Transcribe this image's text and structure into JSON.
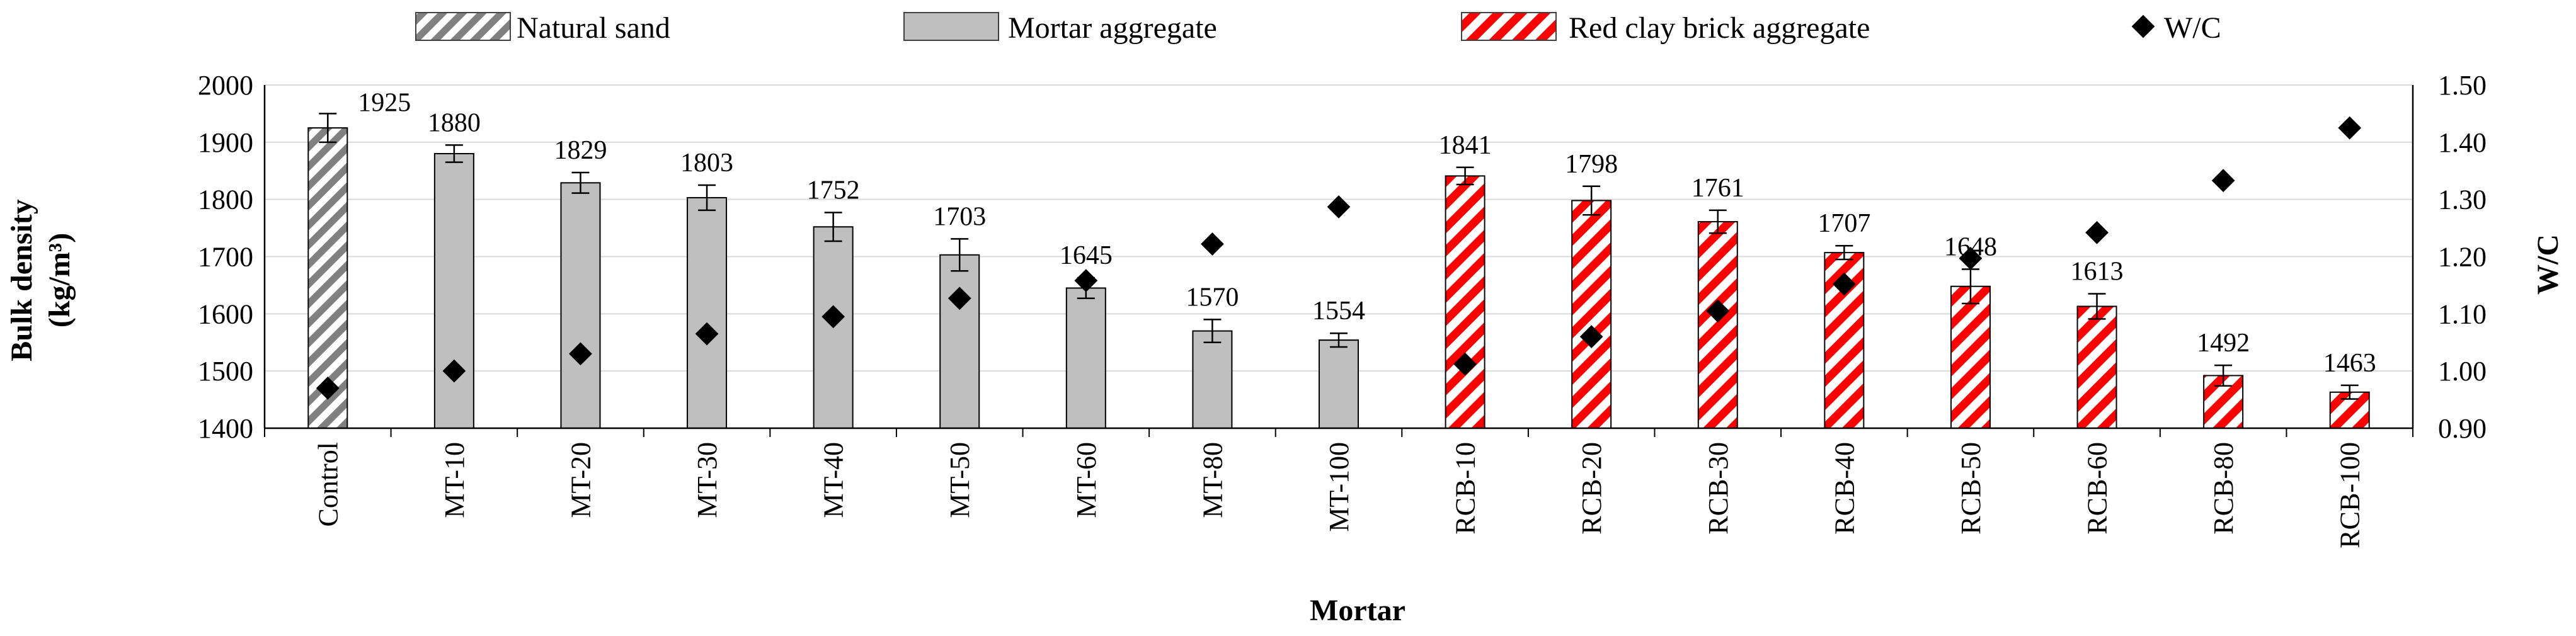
{
  "chart_data": {
    "type": "bar",
    "xlabel": "Mortar",
    "ylabel": "Bulk density",
    "ylabel_unit": "(kg/m³)",
    "y2label": "W/C",
    "ylim": [
      1400,
      2000
    ],
    "y2lim": [
      0.9,
      1.5
    ],
    "yticks": [
      "1400",
      "1500",
      "1600",
      "1700",
      "1800",
      "1900",
      "2000"
    ],
    "y2ticks": [
      "0.90",
      "1.00",
      "1.10",
      "1.20",
      "1.30",
      "1.40",
      "1.50"
    ],
    "grid": "horizontal",
    "legend_position": "top",
    "categories": [
      "Control",
      "MT-10",
      "MT-20",
      "MT-30",
      "MT-40",
      "MT-50",
      "MT-60",
      "MT-80",
      "MT-100",
      "RCB-10",
      "RCB-20",
      "RCB-30",
      "RCB-40",
      "RCB-50",
      "RCB-60",
      "RCB-80",
      "RCB-100"
    ],
    "groups": [
      "natural",
      "mortar",
      "mortar",
      "mortar",
      "mortar",
      "mortar",
      "mortar",
      "mortar",
      "mortar",
      "brick",
      "brick",
      "brick",
      "brick",
      "brick",
      "brick",
      "brick",
      "brick"
    ],
    "bulk_density": [
      1925,
      1880,
      1829,
      1803,
      1752,
      1703,
      1645,
      1570,
      1554,
      1841,
      1798,
      1761,
      1707,
      1648,
      1613,
      1492,
      1463
    ],
    "bulk_density_labels": [
      "1925",
      "1880",
      "1829",
      "1803",
      "1752",
      "1703",
      "1645",
      "1570",
      "1554",
      "1841",
      "1798",
      "1761",
      "1707",
      "1648",
      "1613",
      "1492",
      "1463"
    ],
    "error": [
      25,
      15,
      18,
      22,
      25,
      28,
      18,
      20,
      12,
      15,
      25,
      20,
      12,
      30,
      22,
      18,
      12
    ],
    "wc": [
      0.97,
      1.0,
      1.03,
      1.065,
      1.095,
      1.127,
      1.158,
      1.222,
      1.287,
      1.012,
      1.06,
      1.105,
      1.152,
      1.197,
      1.242,
      1.333,
      1.425
    ],
    "legend": [
      {
        "key": "natural",
        "label": "Natural sand"
      },
      {
        "key": "mortar",
        "label": "Mortar aggregate"
      },
      {
        "key": "brick",
        "label": "Red clay brick aggregate"
      },
      {
        "key": "wc",
        "label": "W/C"
      }
    ],
    "colors": {
      "natural_stripe": "#808080",
      "mortar_fill": "#bfbfbf",
      "brick_stripe": "#ff0000",
      "marker": "#000000",
      "grid": "#d9d9d9",
      "axis": "#000000"
    }
  }
}
